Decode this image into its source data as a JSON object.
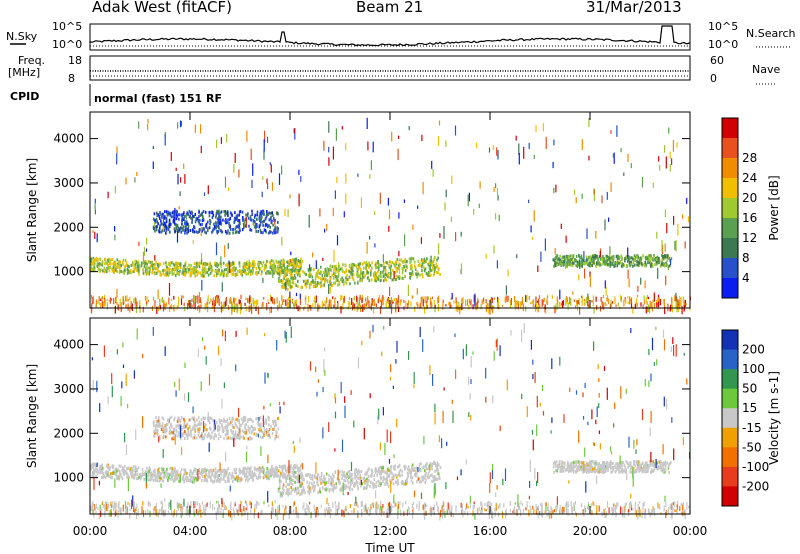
{
  "header": {
    "site": "Adak West (fitACF)",
    "beam": "Beam 21",
    "date": "31/Mar/2013"
  },
  "panels": {
    "nsky": {
      "label": "N.Sky",
      "ticks": [
        "10^5",
        "10^0"
      ],
      "right_label": "N.Search",
      "right_ticks": [
        "10^5",
        "10^0"
      ]
    },
    "freq": {
      "label_line1": "Freq.",
      "label_line2": "[MHz]",
      "ticks": [
        "18",
        "8"
      ],
      "right_label": "Nave",
      "right_ticks": [
        "60",
        "0"
      ]
    },
    "cpid": {
      "label": "CPID",
      "value": "normal (fast) 151 RF"
    }
  },
  "chart_data": [
    {
      "type": "heatmap",
      "name": "power",
      "ylabel": "Slant Range [km]",
      "xlabel": "Time UT",
      "x_range_hours": [
        0,
        24
      ],
      "ylim_km": [
        180,
        4600
      ],
      "y_ticks": [
        1000,
        2000,
        3000,
        4000
      ],
      "x_ticks": [
        "00:00",
        "04:00",
        "08:00",
        "12:00",
        "16:00",
        "20:00",
        "00:00"
      ],
      "colorbar": {
        "label": "Power [dB]",
        "ticks": [
          4,
          8,
          12,
          16,
          20,
          24,
          28
        ],
        "colors": [
          "#0a1ef0",
          "#2850c8",
          "#3c7850",
          "#5aa050",
          "#a0c830",
          "#f0c000",
          "#f08c00",
          "#e85020",
          "#d00000"
        ]
      },
      "echo_regions": [
        {
          "t_start": 0.0,
          "t_end": 8.5,
          "range_km": [
            1050,
            1350
          ],
          "power_db": 18
        },
        {
          "t_start": 2.5,
          "t_end": 7.5,
          "range_km": [
            1900,
            2400
          ],
          "power_db": 5
        },
        {
          "t_start": 7.5,
          "t_end": 14.0,
          "range_km": [
            600,
            1050
          ],
          "power_db": 20
        },
        {
          "t_start": 18.5,
          "t_end": 23.2,
          "range_km": [
            1150,
            1400
          ],
          "power_db": 14
        }
      ]
    },
    {
      "type": "heatmap",
      "name": "velocity",
      "ylabel": "Slant Range [km]",
      "xlabel": "Time UT",
      "x_range_hours": [
        0,
        24
      ],
      "ylim_km": [
        180,
        4600
      ],
      "y_ticks": [
        1000,
        2000,
        3000,
        4000
      ],
      "x_ticks": [
        "00:00",
        "04:00",
        "08:00",
        "12:00",
        "16:00",
        "20:00",
        "00:00"
      ],
      "colorbar": {
        "label": "Velocity [m s-1]",
        "ticks": [
          200,
          100,
          50,
          15,
          -15,
          -50,
          -100,
          -200
        ],
        "colors": [
          "#1432b4",
          "#2864c8",
          "#329650",
          "#6ec83c",
          "#c8c8c8",
          "#f0a000",
          "#f07000",
          "#e83c1e",
          "#d00000"
        ]
      },
      "echo_regions": [
        {
          "t_start": 0.0,
          "t_end": 8.5,
          "range_km": [
            1050,
            1350
          ],
          "velocity": 0
        },
        {
          "t_start": 2.5,
          "t_end": 7.5,
          "range_km": [
            1900,
            2400
          ],
          "velocity": -30
        },
        {
          "t_start": 7.5,
          "t_end": 14.0,
          "range_km": [
            600,
            1050
          ],
          "velocity": 0
        },
        {
          "t_start": 18.5,
          "t_end": 23.2,
          "range_km": [
            1150,
            1400
          ],
          "velocity": 0
        }
      ]
    }
  ]
}
